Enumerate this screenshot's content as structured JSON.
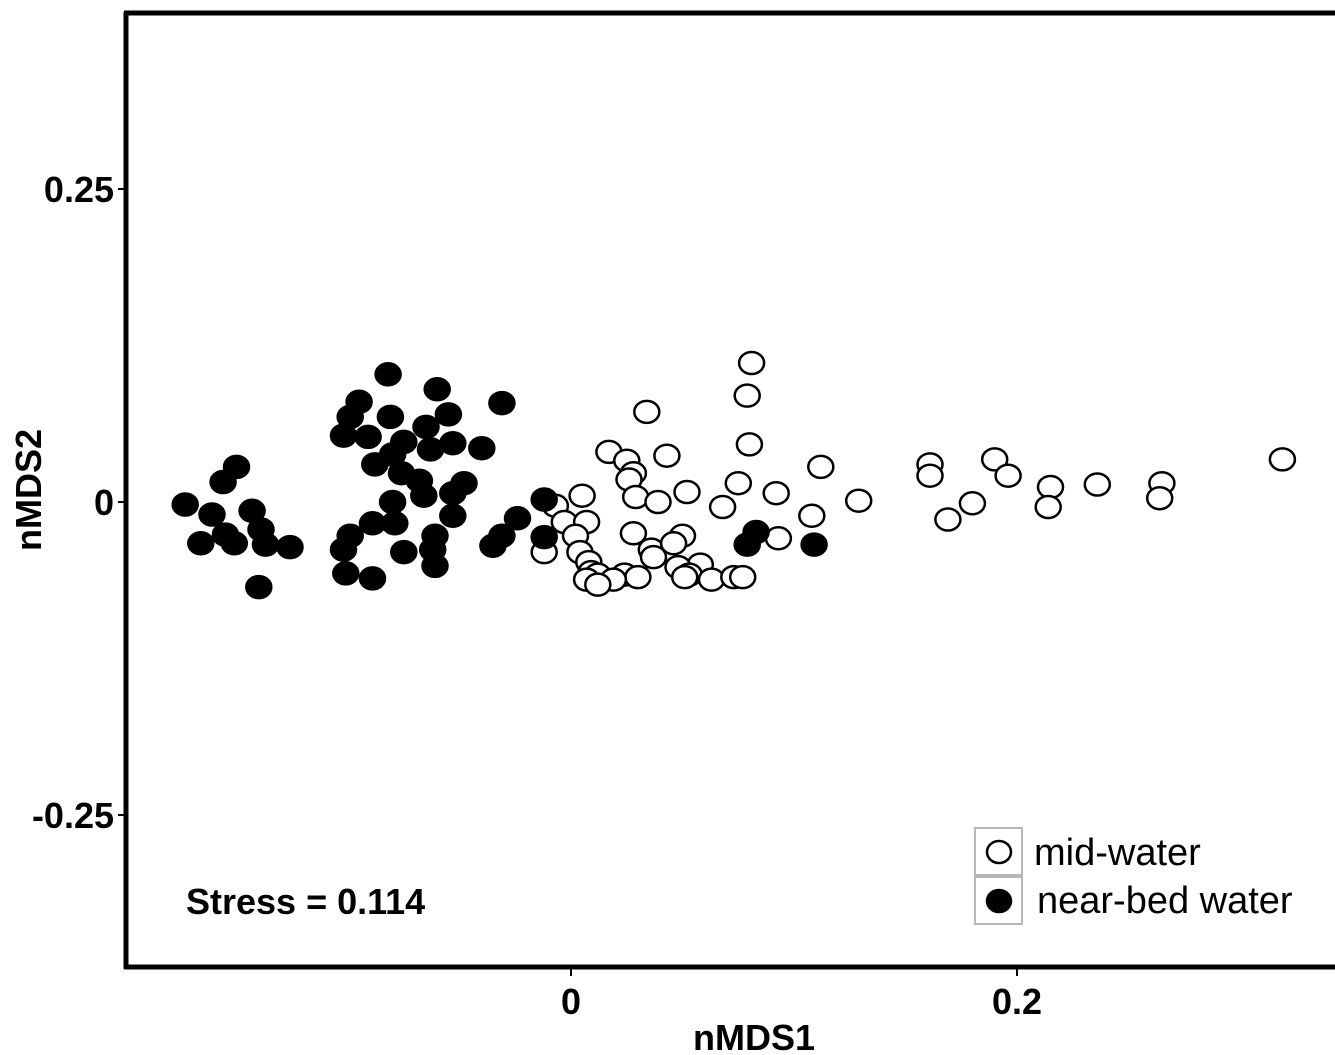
{
  "chart_data": {
    "type": "scatter",
    "xlabel": "nMDS1",
    "ylabel": "nMDS2",
    "xlim": [
      -0.2,
      0.345
    ],
    "ylim": [
      -0.37,
      0.39
    ],
    "x_ticks": [
      {
        "value": 0,
        "label": "0"
      },
      {
        "value": 0.2,
        "label": "0.2"
      }
    ],
    "y_ticks": [
      {
        "value": 0.25,
        "label": "0.25"
      },
      {
        "value": 0,
        "label": "0"
      },
      {
        "value": -0.25,
        "label": "-0.25"
      }
    ],
    "annotation": "Stress = 0.114",
    "grid": false,
    "legend_position": "bottom-right",
    "series": [
      {
        "name": "mid-water",
        "marker": "open-circle",
        "color": "#ffffff",
        "stroke": "#000000",
        "points": [
          [
            0.081,
            0.111
          ],
          [
            0.079,
            0.085
          ],
          [
            0.034,
            0.072
          ],
          [
            0.08,
            0.046
          ],
          [
            0.017,
            0.04
          ],
          [
            0.043,
            0.037
          ],
          [
            0.025,
            0.033
          ],
          [
            0.028,
            0.023
          ],
          [
            0.026,
            0.018
          ],
          [
            0.112,
            0.028
          ],
          [
            0.075,
            0.015
          ],
          [
            0.052,
            0.008
          ],
          [
            0.092,
            0.007
          ],
          [
            0.029,
            0.004
          ],
          [
            0.005,
            0.005
          ],
          [
            0.039,
            0.0
          ],
          [
            0.068,
            -0.004
          ],
          [
            -0.007,
            -0.003
          ],
          [
            0.108,
            -0.011
          ],
          [
            -0.003,
            -0.016
          ],
          [
            0.007,
            -0.016
          ],
          [
            0.002,
            -0.027
          ],
          [
            0.028,
            -0.025
          ],
          [
            0.05,
            -0.027
          ],
          [
            0.093,
            -0.029
          ],
          [
            0.004,
            -0.04
          ],
          [
            0.036,
            -0.038
          ],
          [
            0.046,
            -0.033
          ],
          [
            -0.012,
            -0.04
          ],
          [
            0.037,
            -0.044
          ],
          [
            0.058,
            -0.05
          ],
          [
            0.008,
            -0.048
          ],
          [
            0.009,
            -0.056
          ],
          [
            0.012,
            -0.058
          ],
          [
            0.048,
            -0.052
          ],
          [
            0.053,
            -0.058
          ],
          [
            0.024,
            -0.058
          ],
          [
            0.03,
            -0.06
          ],
          [
            0.051,
            -0.06
          ],
          [
            0.063,
            -0.062
          ],
          [
            0.019,
            -0.062
          ],
          [
            0.007,
            -0.062
          ],
          [
            0.073,
            -0.06
          ],
          [
            0.077,
            -0.06
          ],
          [
            0.012,
            -0.066
          ],
          [
            0.129,
            0.001
          ],
          [
            0.161,
            0.03
          ],
          [
            0.161,
            0.021
          ],
          [
            0.19,
            0.034
          ],
          [
            0.196,
            0.021
          ],
          [
            0.169,
            -0.014
          ],
          [
            0.18,
            -0.001
          ],
          [
            0.215,
            0.012
          ],
          [
            0.214,
            -0.004
          ],
          [
            0.236,
            0.014
          ],
          [
            0.265,
            0.015
          ],
          [
            0.264,
            0.003
          ],
          [
            0.319,
            0.034
          ]
        ]
      },
      {
        "name": "near-bed water",
        "marker": "filled-circle",
        "color": "#000000",
        "stroke": "#000000",
        "points": [
          [
            -0.082,
            0.102
          ],
          [
            -0.031,
            0.079
          ],
          [
            -0.06,
            0.09
          ],
          [
            -0.095,
            0.08
          ],
          [
            -0.099,
            0.068
          ],
          [
            -0.081,
            0.068
          ],
          [
            -0.055,
            0.07
          ],
          [
            -0.065,
            0.06
          ],
          [
            -0.102,
            0.053
          ],
          [
            -0.091,
            0.052
          ],
          [
            -0.075,
            0.048
          ],
          [
            -0.08,
            0.038
          ],
          [
            -0.053,
            0.047
          ],
          [
            -0.04,
            0.043
          ],
          [
            -0.063,
            0.042
          ],
          [
            -0.088,
            0.03
          ],
          [
            -0.076,
            0.023
          ],
          [
            -0.068,
            0.017
          ],
          [
            -0.048,
            0.015
          ],
          [
            -0.053,
            0.007
          ],
          [
            -0.066,
            0.005
          ],
          [
            -0.08,
            0.0
          ],
          [
            -0.15,
            0.028
          ],
          [
            -0.156,
            0.016
          ],
          [
            -0.173,
            -0.002
          ],
          [
            -0.143,
            -0.007
          ],
          [
            -0.161,
            -0.01
          ],
          [
            -0.053,
            -0.011
          ],
          [
            -0.024,
            -0.013
          ],
          [
            -0.012,
            0.002
          ],
          [
            -0.089,
            -0.017
          ],
          [
            -0.079,
            -0.017
          ],
          [
            -0.139,
            -0.022
          ],
          [
            -0.155,
            -0.026
          ],
          [
            -0.099,
            -0.027
          ],
          [
            -0.061,
            -0.027
          ],
          [
            -0.031,
            -0.027
          ],
          [
            -0.137,
            -0.034
          ],
          [
            -0.151,
            -0.033
          ],
          [
            -0.126,
            -0.036
          ],
          [
            -0.102,
            -0.038
          ],
          [
            -0.075,
            -0.04
          ],
          [
            -0.062,
            -0.038
          ],
          [
            -0.035,
            -0.035
          ],
          [
            -0.166,
            -0.033
          ],
          [
            -0.012,
            -0.028
          ],
          [
            0.083,
            -0.024
          ],
          [
            0.079,
            -0.034
          ],
          [
            0.109,
            -0.034
          ],
          [
            -0.101,
            -0.057
          ],
          [
            -0.089,
            -0.061
          ],
          [
            -0.061,
            -0.051
          ],
          [
            -0.14,
            -0.068
          ]
        ]
      }
    ]
  }
}
